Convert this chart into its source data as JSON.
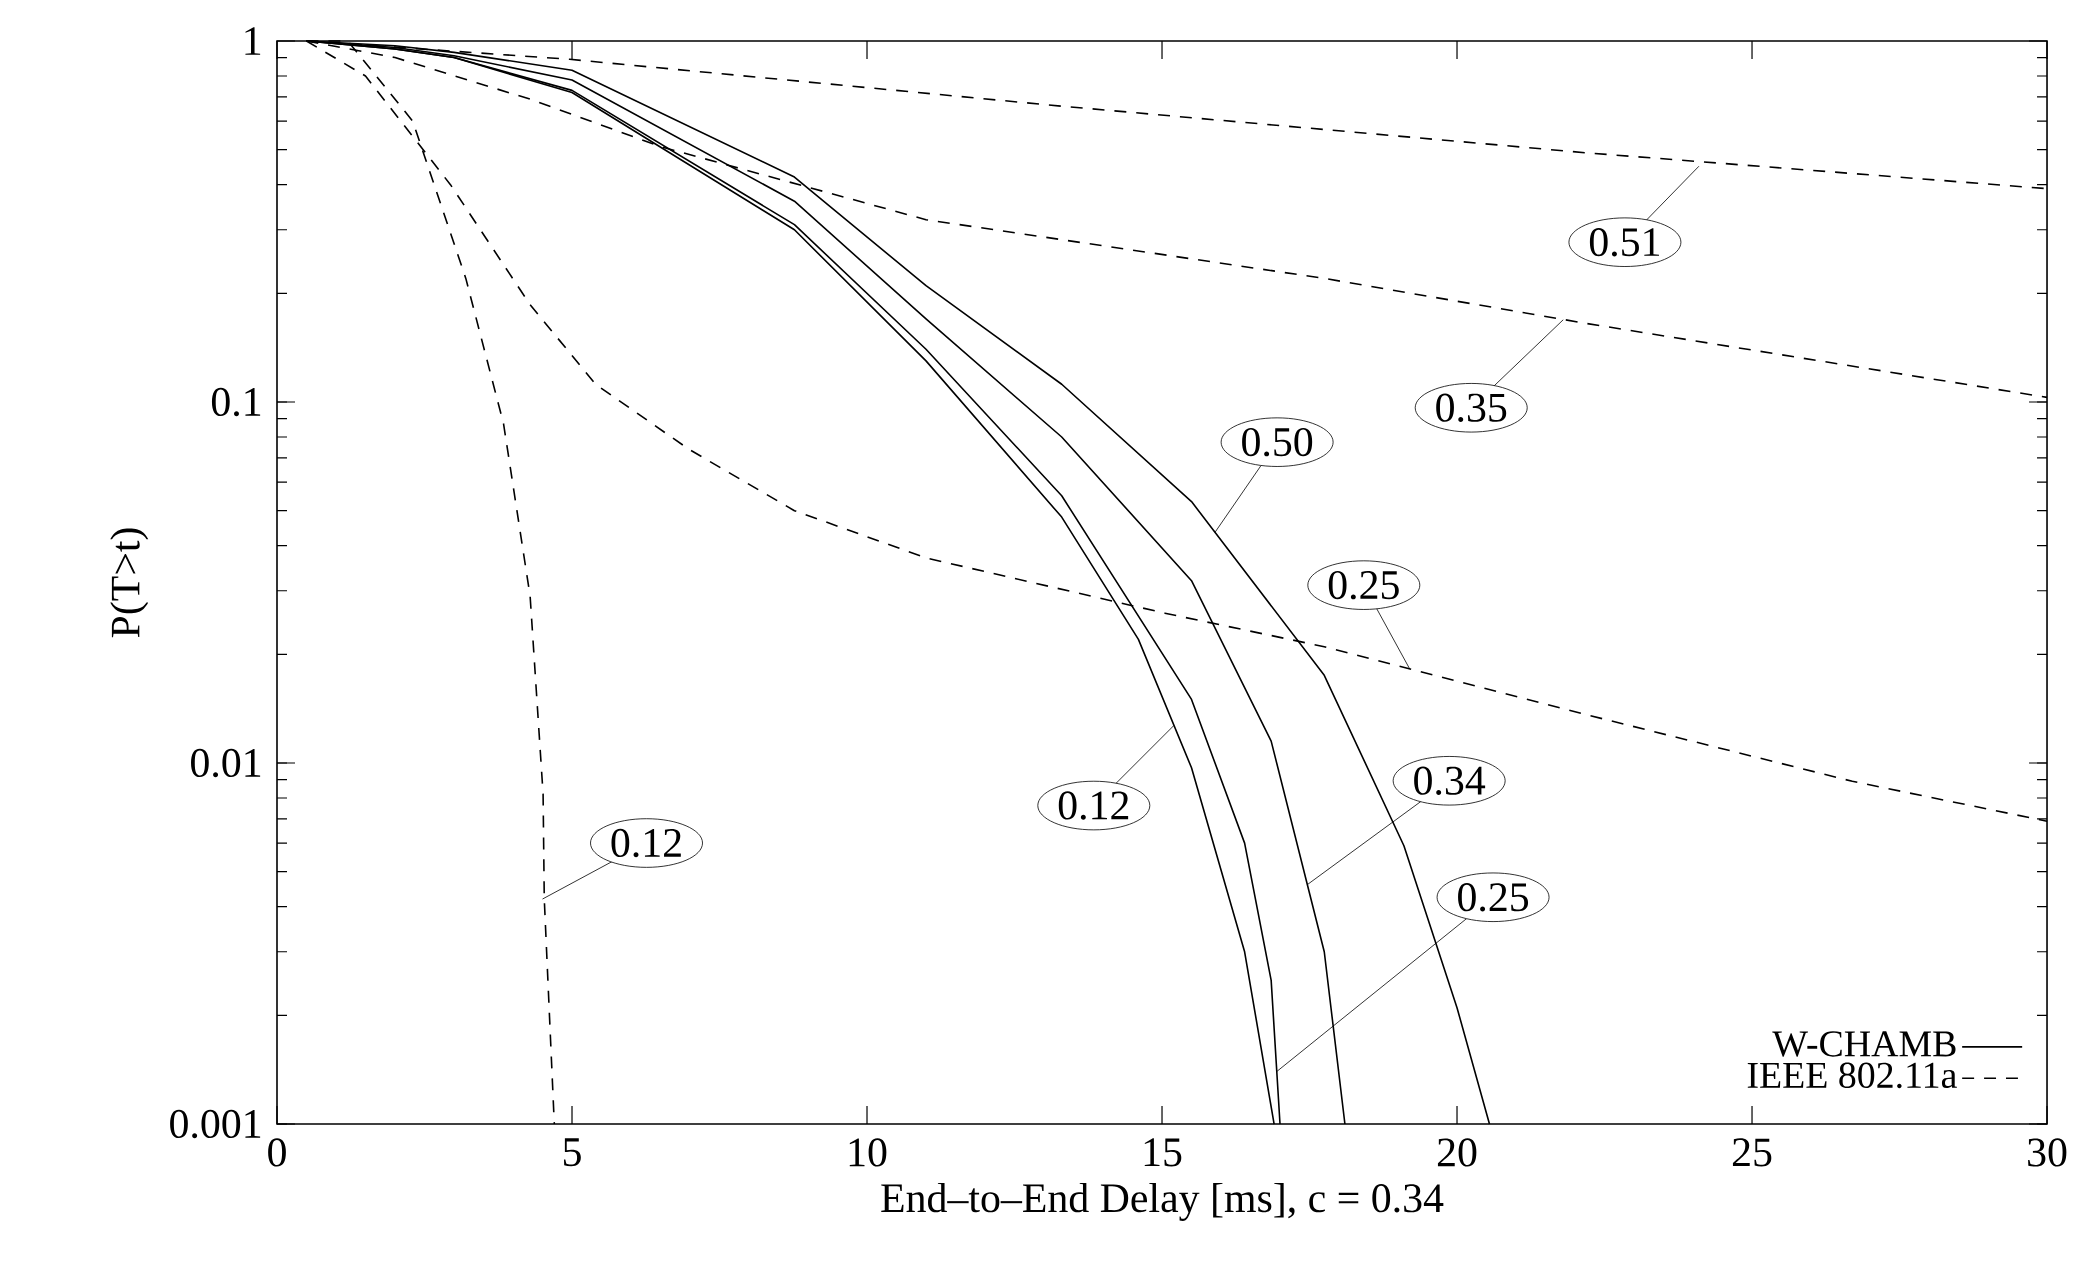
{
  "chart_data": {
    "type": "line",
    "xlabel": "End–to–End Delay [ms], c = 0.34",
    "ylabel": "P(T>t)",
    "log": "y",
    "xlim": [
      0,
      30
    ],
    "ylim": [
      0.001,
      1
    ],
    "xticks": [
      0,
      5,
      10,
      15,
      20,
      25,
      30
    ],
    "yticks": [
      0.001,
      0.01,
      0.1,
      1
    ],
    "legend": "bottom right",
    "grid": false,
    "series": [
      {
        "name": "W-CHAMB",
        "color": "#000000",
        "line_style": "solid",
        "x": [
          0.5,
          2,
          3,
          5,
          8.77,
          11.0,
          13.3,
          14.6,
          15.5,
          16.4,
          16.9
        ],
        "values": [
          1,
          0.95,
          0.9,
          0.72,
          0.3,
          0.13,
          0.048,
          0.022,
          0.0097,
          0.003,
          0.001
        ]
      },
      {
        "color": "#000000",
        "line_style": "solid",
        "x": [
          0.5,
          2,
          3,
          5,
          8.77,
          11.0,
          13.3,
          15.5,
          16.4,
          16.85,
          17.0
        ],
        "values": [
          1,
          0.95,
          0.9,
          0.73,
          0.31,
          0.14,
          0.055,
          0.015,
          0.006,
          0.0025,
          0.001
        ]
      },
      {
        "color": "#000000",
        "line_style": "solid",
        "x": [
          0.5,
          2,
          3,
          5,
          8.77,
          11.0,
          13.3,
          15.5,
          16.85,
          17.75,
          18.1
        ],
        "values": [
          1,
          0.96,
          0.91,
          0.78,
          0.36,
          0.17,
          0.08,
          0.032,
          0.0115,
          0.003,
          0.001
        ]
      },
      {
        "color": "#000000",
        "line_style": "solid",
        "x": [
          0.5,
          2,
          3,
          5,
          8.77,
          11.0,
          13.3,
          15.5,
          17.75,
          19.1,
          20.0,
          20.55
        ],
        "values": [
          1,
          0.97,
          0.93,
          0.83,
          0.42,
          0.21,
          0.112,
          0.053,
          0.0175,
          0.0059,
          0.0021,
          0.001
        ]
      },
      {
        "name": "IEEE 802.11a",
        "color": "#000000",
        "line_style": "dashed",
        "x": [
          0.5,
          1.2,
          2.3,
          3.2,
          3.84,
          4.29,
          4.51,
          4.53,
          4.7
        ],
        "values": [
          1,
          1,
          0.6,
          0.22,
          0.087,
          0.029,
          0.0082,
          0.0042,
          0.001
        ]
      },
      {
        "color": "#000000",
        "line_style": "dashed",
        "x": [
          0.5,
          1.5,
          2.94,
          4.29,
          5.4,
          6.98,
          8.77,
          11.0,
          15.05,
          17.75,
          22.2,
          26.7,
          30
        ],
        "values": [
          1,
          0.8,
          0.4,
          0.186,
          0.112,
          0.074,
          0.05,
          0.037,
          0.026,
          0.021,
          0.0136,
          0.0089,
          0.0069
        ]
      },
      {
        "color": "#000000",
        "line_style": "dashed",
        "x": [
          0.5,
          2,
          4.29,
          6.5,
          11.0,
          17.75,
          22.2,
          30
        ],
        "values": [
          1,
          0.9,
          0.69,
          0.51,
          0.32,
          0.22,
          0.165,
          0.103
        ]
      },
      {
        "color": "#000000",
        "line_style": "dashed",
        "x": [
          0.5,
          4.96,
          13.3,
          22.2,
          30
        ],
        "values": [
          1,
          0.89,
          0.66,
          0.49,
          0.39
        ]
      }
    ],
    "annotations": [
      {
        "text": "0.51",
        "x": 24.1,
        "y": 0.45
      },
      {
        "text": "0.35",
        "x": 21.8,
        "y": 0.169
      },
      {
        "text": "0.50",
        "x": 15.9,
        "y": 0.0436
      },
      {
        "text": "0.25",
        "x": 19.2,
        "y": 0.0182
      },
      {
        "text": "0.12",
        "x": 15.2,
        "y": 0.0127
      },
      {
        "text": "0.34",
        "x": 17.46,
        "y": 0.0046
      },
      {
        "text": "0.25",
        "x": 16.95,
        "y": 0.0014
      },
      {
        "text": "0.12",
        "x": 4.5,
        "y": 0.0042
      }
    ]
  }
}
